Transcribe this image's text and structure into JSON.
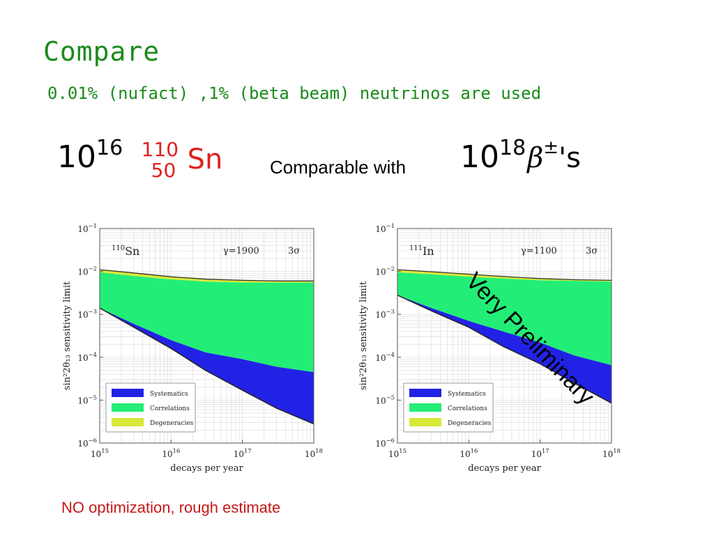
{
  "slide": {
    "title": "Compare",
    "subtitle": "0.01% (nufact) ,1% (beta beam) neutrinos are used",
    "eq_left": {
      "base": "10",
      "exp": "16",
      "mass": "110",
      "z": "50",
      "symbol": "Sn"
    },
    "comparable_text": "Comparable with",
    "eq_right": {
      "base": "10",
      "exp": "18",
      "beta": "β",
      "pm": "±",
      "suffix": "'s"
    },
    "stamp": "Very Preliminary",
    "footnote": "NO optimization, rough estimate"
  },
  "colors": {
    "title": "#1a8a1a",
    "isotope": "#e02020",
    "systematics": "#2222e6",
    "correlations": "#22ee77",
    "degeneracies": "#d8e838",
    "footnote": "#c81818"
  },
  "chart_data": [
    {
      "type": "area",
      "isotope_mass": "110",
      "isotope_symbol": "Sn",
      "gamma_label": "γ=1900",
      "sigma_label": "3σ",
      "xlabel": "decays per year",
      "ylabel": "sin²2θ₁₃ sensitivity limit",
      "x_scale": "log",
      "y_scale": "log",
      "xlim": [
        1000000000000000.0,
        1e+18
      ],
      "ylim": [
        1e-06,
        0.1
      ],
      "x_ticks": [
        {
          "base": "10",
          "exp": "15"
        },
        {
          "base": "10",
          "exp": "16"
        },
        {
          "base": "10",
          "exp": "17"
        },
        {
          "base": "10",
          "exp": "18"
        }
      ],
      "y_ticks": [
        {
          "base": "10",
          "exp": "−1"
        },
        {
          "base": "10",
          "exp": "−2"
        },
        {
          "base": "10",
          "exp": "−3"
        },
        {
          "base": "10",
          "exp": "−4"
        },
        {
          "base": "10",
          "exp": "−5"
        },
        {
          "base": "10",
          "exp": "−6"
        }
      ],
      "grid": true,
      "legend_position": "bottom-left",
      "x": [
        1000000000000000.0,
        3000000000000000.0,
        1e+16,
        3e+16,
        1e+17,
        3e+17,
        1e+18
      ],
      "series": [
        {
          "name": "Degeneracies",
          "lower": [
            0.0095,
            0.0078,
            0.0065,
            0.0058,
            0.0055,
            0.0055,
            0.0055
          ],
          "upper": [
            0.011,
            0.0092,
            0.0075,
            0.0066,
            0.0062,
            0.006,
            0.006
          ]
        },
        {
          "name": "Correlations",
          "lower": [
            0.0014,
            0.0006,
            0.00025,
            0.00013,
            9e-05,
            6e-05,
            4.5e-05
          ],
          "upper": [
            0.0095,
            0.0078,
            0.0065,
            0.0058,
            0.0055,
            0.0055,
            0.0055
          ]
        },
        {
          "name": "Systematics",
          "lower": [
            0.0014,
            0.0005,
            0.00016,
            5e-05,
            1.7e-05,
            6.5e-06,
            2.8e-06
          ],
          "upper": [
            0.0014,
            0.0006,
            0.00025,
            0.00013,
            9e-05,
            6e-05,
            4.5e-05
          ]
        }
      ]
    },
    {
      "type": "area",
      "isotope_mass": "111",
      "isotope_symbol": "In",
      "gamma_label": "γ=1100",
      "sigma_label": "3σ",
      "xlabel": "decays per year",
      "ylabel": "sin²2θ₁₃ sensitivity limit",
      "x_scale": "log",
      "y_scale": "log",
      "xlim": [
        1000000000000000.0,
        1e+18
      ],
      "ylim": [
        1e-06,
        0.1
      ],
      "x_ticks": [
        {
          "base": "10",
          "exp": "15"
        },
        {
          "base": "10",
          "exp": "16"
        },
        {
          "base": "10",
          "exp": "17"
        },
        {
          "base": "10",
          "exp": "18"
        }
      ],
      "y_ticks": [
        {
          "base": "10",
          "exp": "−1"
        },
        {
          "base": "10",
          "exp": "−2"
        },
        {
          "base": "10",
          "exp": "−3"
        },
        {
          "base": "10",
          "exp": "−4"
        },
        {
          "base": "10",
          "exp": "−5"
        },
        {
          "base": "10",
          "exp": "−6"
        }
      ],
      "grid": true,
      "legend_position": "bottom-left",
      "x": [
        1000000000000000.0,
        3000000000000000.0,
        1e+16,
        3e+16,
        1e+17,
        3e+17,
        1e+18
      ],
      "series": [
        {
          "name": "Degeneracies",
          "lower": [
            0.0095,
            0.0085,
            0.0075,
            0.0068,
            0.0062,
            0.006,
            0.0058
          ],
          "upper": [
            0.011,
            0.0098,
            0.0086,
            0.0076,
            0.0068,
            0.0064,
            0.0062
          ]
        },
        {
          "name": "Correlations",
          "lower": [
            0.0028,
            0.0014,
            0.0007,
            0.0004,
            0.00022,
            0.00011,
            6.5e-05
          ],
          "upper": [
            0.0095,
            0.0085,
            0.0075,
            0.0068,
            0.0062,
            0.006,
            0.0058
          ]
        },
        {
          "name": "Systematics",
          "lower": [
            0.0028,
            0.0012,
            0.0005,
            0.00018,
            7e-05,
            2.5e-05,
            8.5e-06
          ],
          "upper": [
            0.0028,
            0.0014,
            0.0007,
            0.0004,
            0.00022,
            0.00011,
            6.5e-05
          ]
        }
      ]
    }
  ]
}
